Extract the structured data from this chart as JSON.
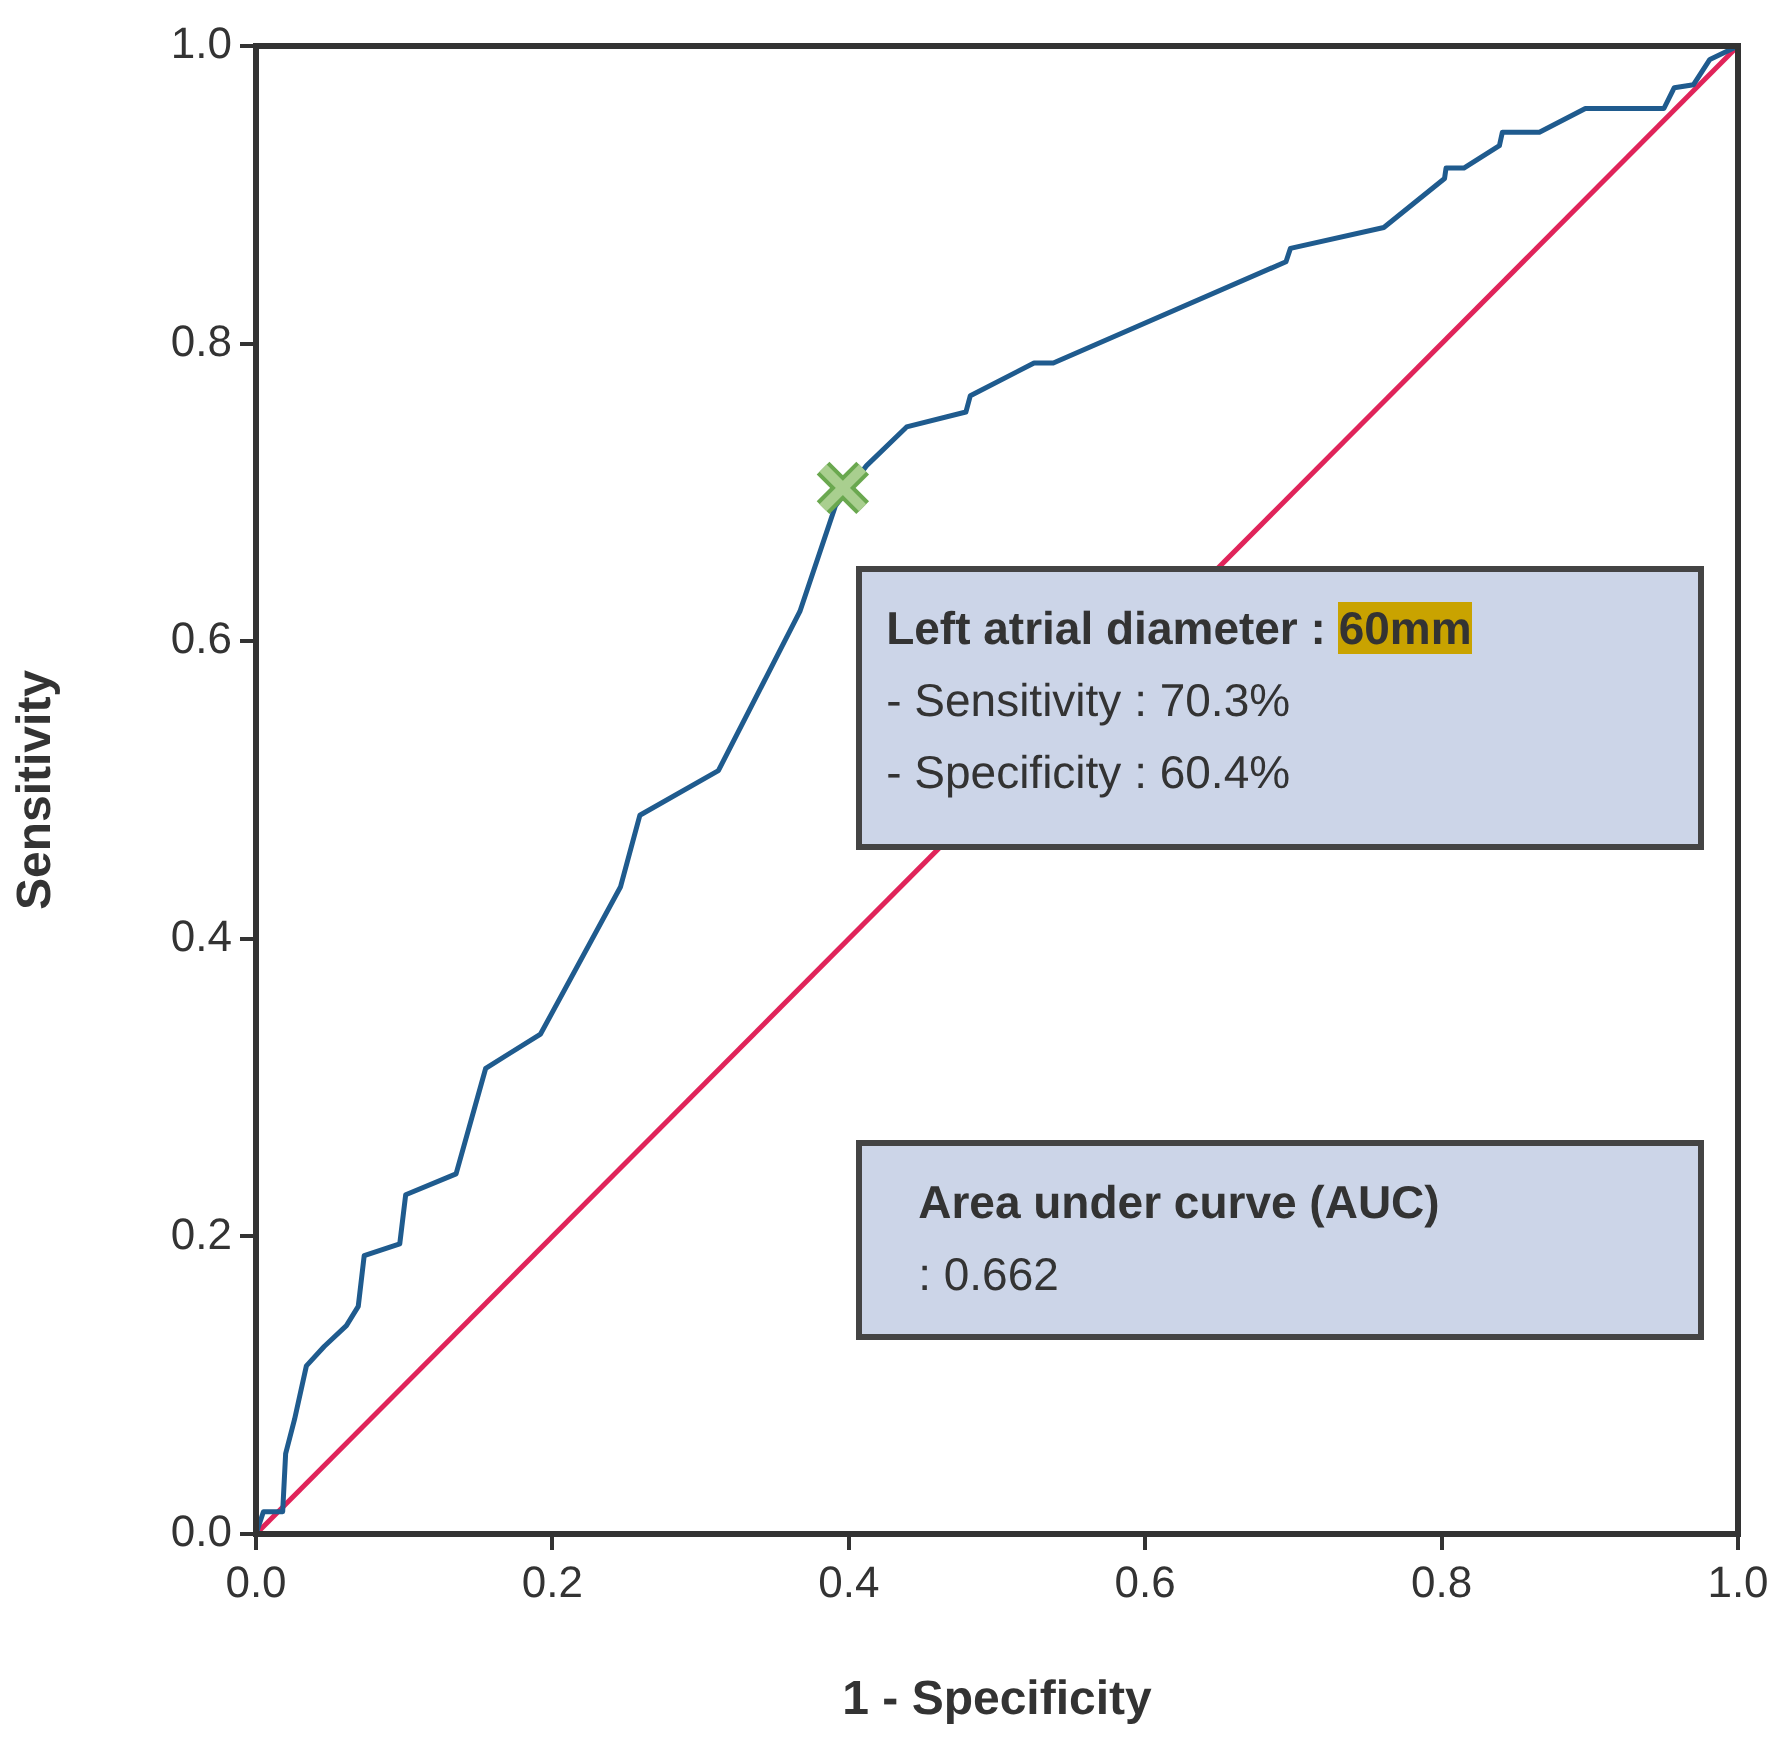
{
  "chart_data": {
    "type": "line",
    "xlabel": "1 - Specificity",
    "ylabel": "Sensitivity",
    "xlim": [
      0,
      1
    ],
    "ylim": [
      0,
      1
    ],
    "xticks": [
      {
        "value": 0,
        "label": "0.0"
      },
      0.2,
      0.4,
      0.6,
      0.8,
      {
        "value": 1,
        "label": "1.0"
      }
    ],
    "yticks": [
      {
        "value": 0,
        "label": "0.0"
      },
      0.2,
      0.4,
      0.6,
      0.8,
      {
        "value": 1,
        "label": "1.0"
      }
    ],
    "series": [
      {
        "type": "line",
        "color": "#1f5b8e",
        "marker": "none",
        "line_style": "solid",
        "x": [
          0,
          0.005,
          0.018,
          0.02,
          0.026,
          0.034,
          0.046,
          0.061,
          0.069,
          0.073,
          0.097,
          0.101,
          0.135,
          0.155,
          0.192,
          0.246,
          0.259,
          0.312,
          0.367,
          0.391,
          0.412,
          0.439,
          0.479,
          0.482,
          0.525,
          0.538,
          0.695,
          0.698,
          0.761,
          0.802,
          0.803,
          0.815,
          0.839,
          0.841,
          0.866,
          0.897,
          0.95,
          0.957,
          0.97,
          0.981,
          1
        ],
        "values": [
          0,
          0.015,
          0.015,
          0.054,
          0.077,
          0.113,
          0.126,
          0.14,
          0.153,
          0.187,
          0.195,
          0.228,
          0.242,
          0.313,
          0.336,
          0.435,
          0.483,
          0.513,
          0.62,
          0.691,
          0.718,
          0.744,
          0.754,
          0.765,
          0.787,
          0.787,
          0.855,
          0.864,
          0.878,
          0.911,
          0.918,
          0.918,
          0.933,
          0.942,
          0.942,
          0.958,
          0.958,
          0.972,
          0.974,
          0.991,
          1
        ]
      },
      {
        "type": "line",
        "color": "#e0245a",
        "marker": "none",
        "line_style": "solid",
        "x": [
          0,
          1
        ],
        "values": [
          0,
          1
        ]
      },
      {
        "type": "scatter",
        "color": "#a9cf8f",
        "marker": "cross",
        "x": [
          0.396
        ],
        "values": [
          0.703
        ]
      }
    ],
    "annotations": [
      "Left atrial diameter : 60mm\n- Sensitivity : 70.3%\n- Specificity : 60.4%",
      "Area under curve (AUC)\n: 0.662"
    ]
  }
}
